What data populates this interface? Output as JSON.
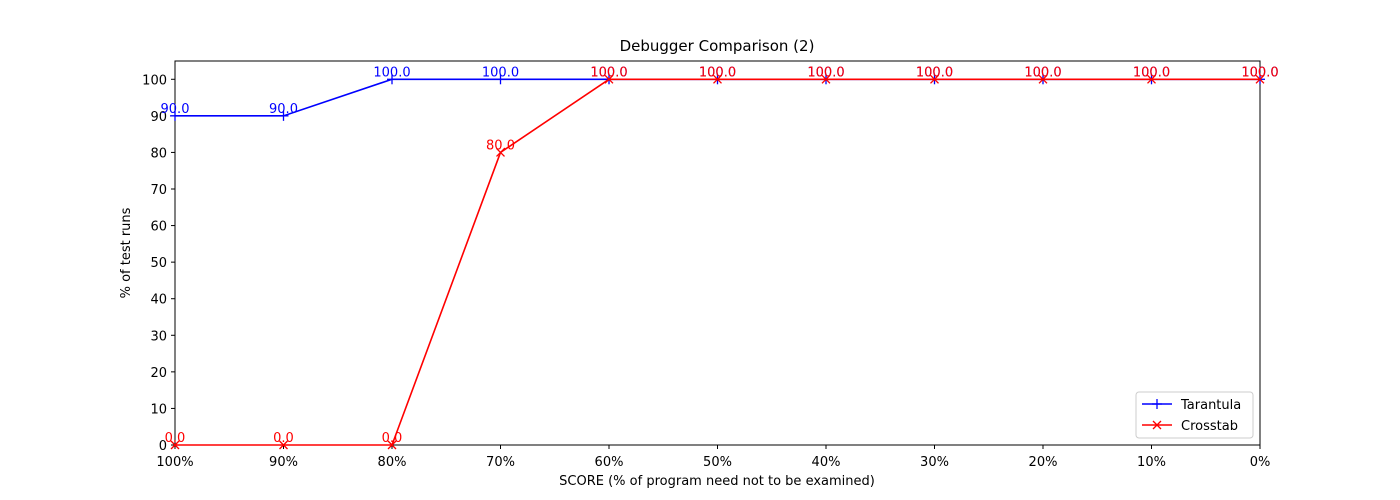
{
  "chart_data": {
    "type": "line",
    "title": "Debugger Comparison (2)",
    "xlabel": "SCORE (% of program need not to be examined)",
    "ylabel": "% of test runs",
    "categories": [
      "100%",
      "90%",
      "80%",
      "70%",
      "60%",
      "50%",
      "40%",
      "30%",
      "20%",
      "10%",
      "0%"
    ],
    "ylim": [
      0,
      105
    ],
    "yticks": [
      0,
      10,
      20,
      30,
      40,
      50,
      60,
      70,
      80,
      90,
      100
    ],
    "grid": false,
    "legend_position": "bottom-right",
    "series": [
      {
        "name": "Tarantula",
        "color": "#0000ff",
        "marker": "plus",
        "values": [
          90,
          90,
          100,
          100,
          100,
          100,
          100,
          100,
          100,
          100,
          100
        ],
        "labels": [
          "90.0",
          "90.0",
          "100.0",
          "100.0",
          "100.0",
          "100.0",
          "100.0",
          "100.0",
          "100.0",
          "100.0",
          "100.0"
        ]
      },
      {
        "name": "Crosstab",
        "color": "#ff0000",
        "marker": "x",
        "values": [
          0,
          0,
          0,
          80,
          100,
          100,
          100,
          100,
          100,
          100,
          100
        ],
        "labels": [
          "0.0",
          "0.0",
          "0.0",
          "80.0",
          "100.0",
          "100.0",
          "100.0",
          "100.0",
          "100.0",
          "100.0",
          "100.0"
        ]
      }
    ]
  }
}
